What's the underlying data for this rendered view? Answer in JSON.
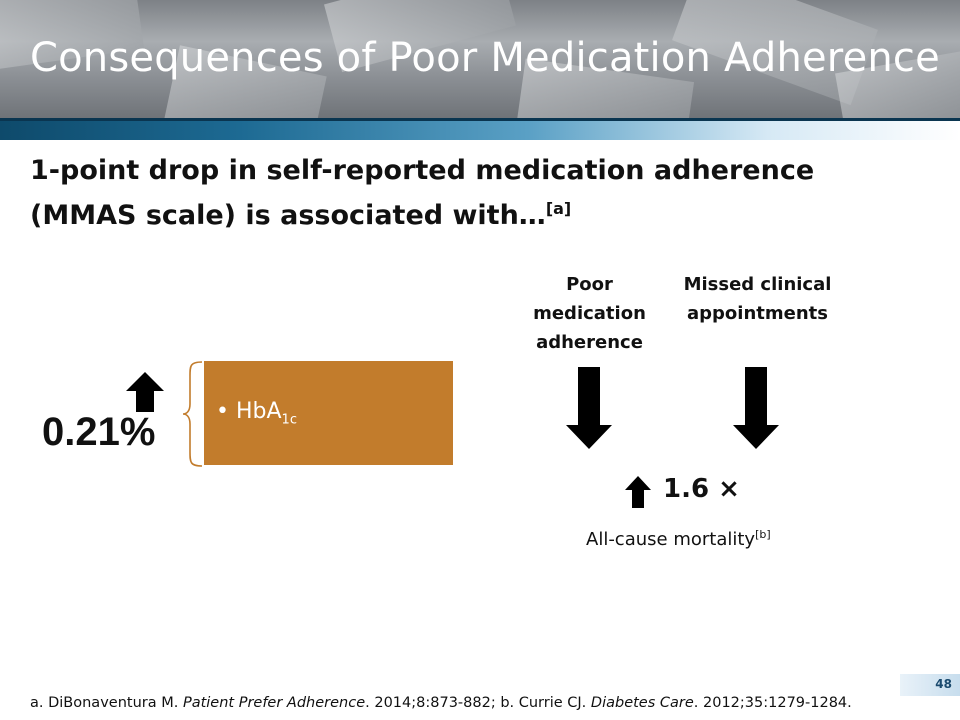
{
  "slide": {
    "title": "Consequences of Poor Medication Adherence",
    "headline_line1": "1-point drop in self-reported medication adherence",
    "headline_line2": "(MMAS scale) is associated with…",
    "headline_ref": "[a]"
  },
  "left_panel": {
    "value": "0.21%",
    "up_icon": "up-arrow-icon",
    "bullet": "•",
    "item_main": "HbA",
    "item_sub": "1c",
    "box_color": "#c27c2c"
  },
  "right_panel": {
    "label1_line1": "Poor",
    "label1_line2": "medication",
    "label1_line3": "adherence",
    "label2_line1": "Missed clinical",
    "label2_line2": "appointments",
    "down_icon": "down-arrow-icon",
    "result_value": "1.6 ×",
    "outcome": "All-cause mortality",
    "outcome_ref": "[b]"
  },
  "footer": {
    "ref_a_prefix": "a. DiBonaventura M. ",
    "ref_a_journal": "Patient Prefer Adherence",
    "ref_a_rest": ". 2014;8:873-882; b. Currie CJ. ",
    "ref_b_journal": "Diabetes Care",
    "ref_b_rest": ". 2012;35:1279-1284.",
    "page_number": "48"
  },
  "colors": {
    "accent_blue": "#0e4a6b",
    "text": "#111111"
  }
}
